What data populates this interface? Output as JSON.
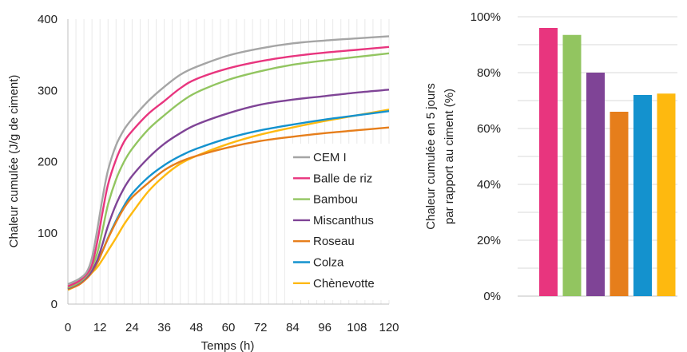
{
  "chart_data": [
    {
      "type": "line",
      "xlabel": "Temps (h)",
      "ylabel": "Chaleur cumulée (J/g de ciment)",
      "xlim": [
        0,
        120
      ],
      "ylim": [
        0,
        400
      ],
      "x_ticks": [
        "0",
        "12",
        "24",
        "36",
        "48",
        "60",
        "72",
        "84",
        "96",
        "108",
        "120"
      ],
      "y_ticks": [
        "0",
        "100",
        "200",
        "300",
        "400"
      ],
      "grid": "vertical",
      "legend_position": "bottom-right",
      "series": [
        {
          "name": "CEM I",
          "color": "#A5A5A5",
          "points": [
            [
              0,
              28
            ],
            [
              4,
              35
            ],
            [
              7,
              45
            ],
            [
              9,
              65
            ],
            [
              11,
              105
            ],
            [
              13,
              150
            ],
            [
              15,
              188
            ],
            [
              18,
              223
            ],
            [
              21,
              245
            ],
            [
              24,
              260
            ],
            [
              30,
              285
            ],
            [
              36,
              305
            ],
            [
              42,
              322
            ],
            [
              48,
              333
            ],
            [
              60,
              349
            ],
            [
              72,
              359
            ],
            [
              84,
              366
            ],
            [
              96,
              370
            ],
            [
              108,
              373
            ],
            [
              120,
              376
            ]
          ]
        },
        {
          "name": "Balle de riz",
          "color": "#E8357E",
          "points": [
            [
              0,
              25
            ],
            [
              4,
              32
            ],
            [
              7,
              42
            ],
            [
              9,
              55
            ],
            [
              11,
              88
            ],
            [
              13,
              130
            ],
            [
              15,
              168
            ],
            [
              18,
              203
            ],
            [
              21,
              228
            ],
            [
              24,
              243
            ],
            [
              30,
              267
            ],
            [
              36,
              285
            ],
            [
              42,
              303
            ],
            [
              48,
              316
            ],
            [
              60,
              331
            ],
            [
              72,
              341
            ],
            [
              84,
              348
            ],
            [
              96,
              353
            ],
            [
              108,
              357
            ],
            [
              120,
              361
            ]
          ]
        },
        {
          "name": "Bambou",
          "color": "#92C560",
          "points": [
            [
              0,
              23
            ],
            [
              4,
              30
            ],
            [
              7,
              40
            ],
            [
              9,
              52
            ],
            [
              11,
              72
            ],
            [
              13,
              105
            ],
            [
              15,
              140
            ],
            [
              18,
              175
            ],
            [
              21,
              200
            ],
            [
              24,
              218
            ],
            [
              30,
              245
            ],
            [
              36,
              265
            ],
            [
              42,
              283
            ],
            [
              48,
              297
            ],
            [
              60,
              315
            ],
            [
              72,
              327
            ],
            [
              84,
              336
            ],
            [
              96,
              342
            ],
            [
              108,
              347
            ],
            [
              120,
              352
            ]
          ]
        },
        {
          "name": "Miscanthus",
          "color": "#7F4496",
          "points": [
            [
              0,
              22
            ],
            [
              4,
              29
            ],
            [
              7,
              38
            ],
            [
              9,
              47
            ],
            [
              11,
              62
            ],
            [
              13,
              85
            ],
            [
              15,
              110
            ],
            [
              18,
              140
            ],
            [
              21,
              163
            ],
            [
              24,
              180
            ],
            [
              30,
              205
            ],
            [
              36,
              225
            ],
            [
              42,
              240
            ],
            [
              48,
              252
            ],
            [
              60,
              268
            ],
            [
              72,
              280
            ],
            [
              84,
              287
            ],
            [
              96,
              292
            ],
            [
              108,
              297
            ],
            [
              120,
              301
            ]
          ]
        },
        {
          "name": "Roseau",
          "color": "#E67E1B",
          "points": [
            [
              0,
              21
            ],
            [
              4,
              27
            ],
            [
              7,
              36
            ],
            [
              9,
              45
            ],
            [
              11,
              58
            ],
            [
              13,
              75
            ],
            [
              15,
              92
            ],
            [
              18,
              115
            ],
            [
              21,
              135
            ],
            [
              24,
              150
            ],
            [
              30,
              170
            ],
            [
              36,
              188
            ],
            [
              42,
              200
            ],
            [
              48,
              208
            ],
            [
              60,
              220
            ],
            [
              72,
              229
            ],
            [
              84,
              235
            ],
            [
              96,
              240
            ],
            [
              108,
              244
            ],
            [
              120,
              248
            ]
          ]
        },
        {
          "name": "Colza",
          "color": "#1492CE",
          "points": [
            [
              0,
              21
            ],
            [
              4,
              28
            ],
            [
              7,
              37
            ],
            [
              9,
              45
            ],
            [
              11,
              58
            ],
            [
              13,
              75
            ],
            [
              15,
              93
            ],
            [
              18,
              117
            ],
            [
              21,
              138
            ],
            [
              24,
              155
            ],
            [
              30,
              178
            ],
            [
              36,
              195
            ],
            [
              42,
              208
            ],
            [
              48,
              218
            ],
            [
              60,
              233
            ],
            [
              72,
              244
            ],
            [
              84,
              252
            ],
            [
              96,
              259
            ],
            [
              108,
              265
            ],
            [
              120,
              271
            ]
          ]
        },
        {
          "name": "Chènevotte",
          "color": "#FEB90F",
          "points": [
            [
              0,
              20
            ],
            [
              4,
              27
            ],
            [
              7,
              36
            ],
            [
              9,
              44
            ],
            [
              11,
              52
            ],
            [
              13,
              63
            ],
            [
              15,
              75
            ],
            [
              18,
              93
            ],
            [
              21,
              112
            ],
            [
              24,
              128
            ],
            [
              30,
              158
            ],
            [
              36,
              180
            ],
            [
              42,
              197
            ],
            [
              48,
              208
            ],
            [
              60,
              225
            ],
            [
              72,
              238
            ],
            [
              84,
              248
            ],
            [
              96,
              257
            ],
            [
              108,
              265
            ],
            [
              120,
              273
            ]
          ]
        }
      ],
      "legend": [
        "CEM I",
        "Balle de riz",
        "Bambou",
        "Miscanthus",
        "Roseau",
        "Colza",
        "Chènevotte"
      ]
    },
    {
      "type": "bar",
      "ylabel": "Chaleur cumulée en 5 jours par rapport au ciment (%)",
      "ylabel_lines": [
        "Chaleur cumulée en 5 jours",
        "par rapport au ciment (%)"
      ],
      "ylim": [
        0,
        100
      ],
      "y_ticks": [
        "0%",
        "20%",
        "40%",
        "60%",
        "80%",
        "100%"
      ],
      "grid": "horizontal",
      "categories": [
        "Balle de riz",
        "Bambou",
        "Miscanthus",
        "Roseau",
        "Colza",
        "Chènevotte"
      ],
      "values": [
        96,
        93.5,
        80,
        66,
        72,
        72.5
      ],
      "colors": [
        "#E8357E",
        "#92C560",
        "#7F4496",
        "#E67E1B",
        "#1492CE",
        "#FEB90F"
      ]
    }
  ]
}
